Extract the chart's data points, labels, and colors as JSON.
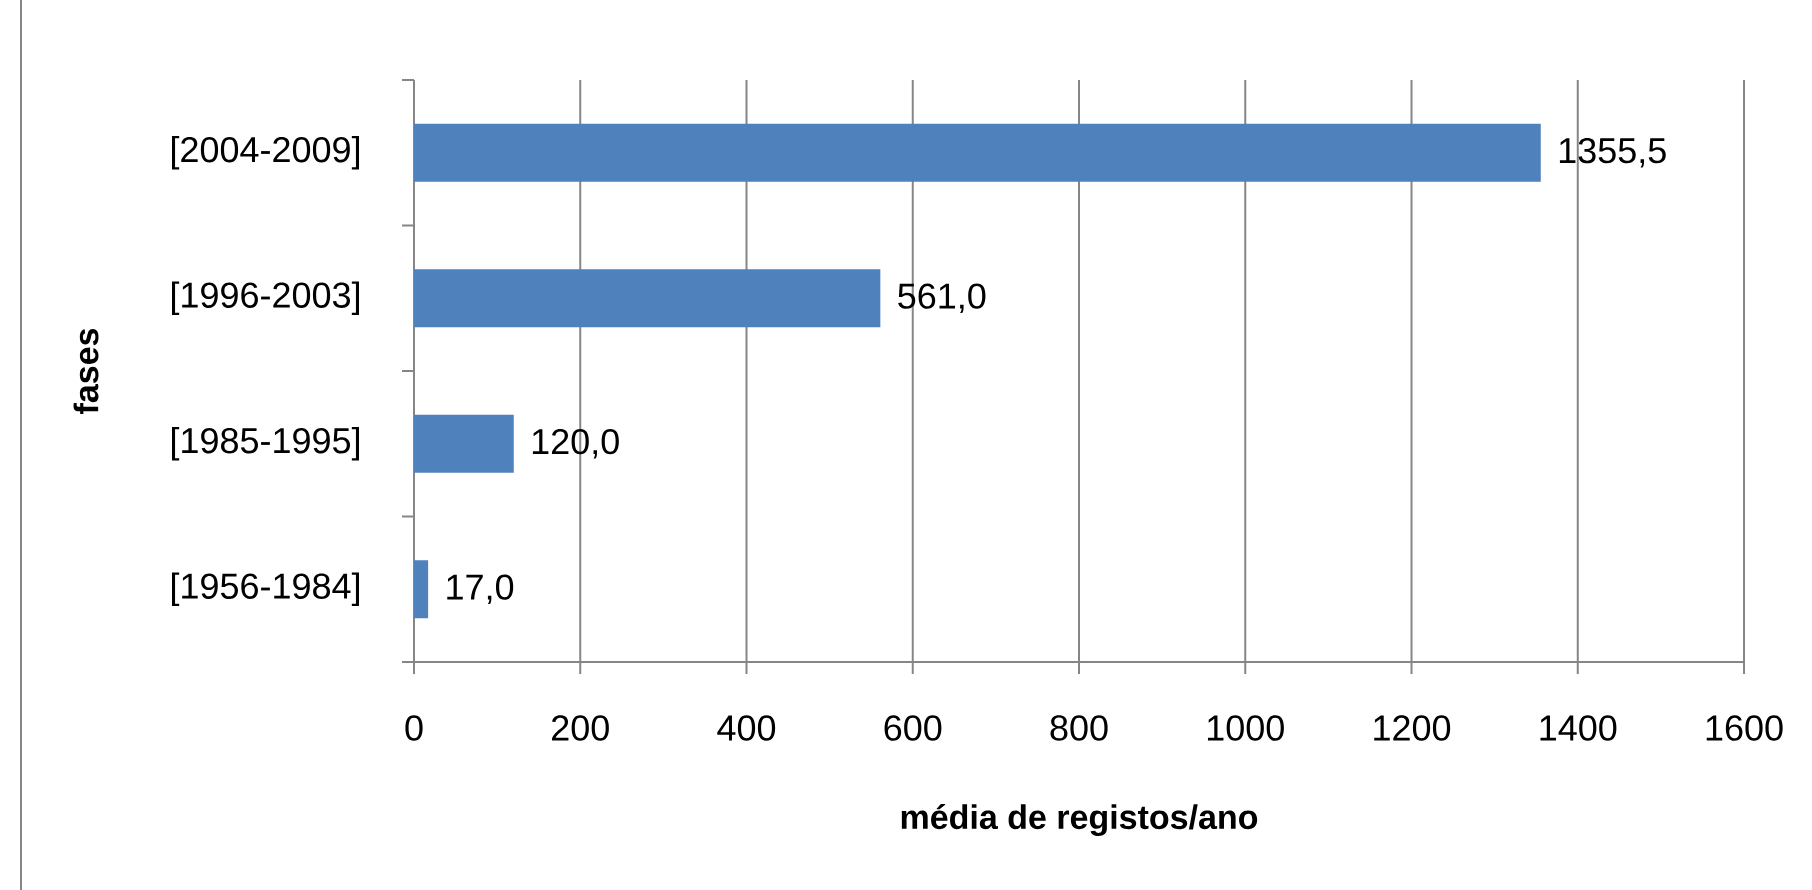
{
  "chart_data": {
    "type": "bar",
    "orientation": "horizontal",
    "xlabel": "média de registos/ano",
    "ylabel": "fases",
    "categories": [
      "[2004-2009]",
      "[1996-2003]",
      "[1985-1995]",
      "[1956-1984]"
    ],
    "values": [
      1355.5,
      561.0,
      120.0,
      17.0
    ],
    "value_labels": [
      "1355,5",
      "561,0",
      "120,0",
      "17,0"
    ],
    "color": "#4f81bd",
    "xlim": [
      0,
      1600
    ],
    "xticks": [
      0,
      200,
      400,
      600,
      800,
      1000,
      1200,
      1400,
      1600
    ],
    "grid": "x"
  }
}
